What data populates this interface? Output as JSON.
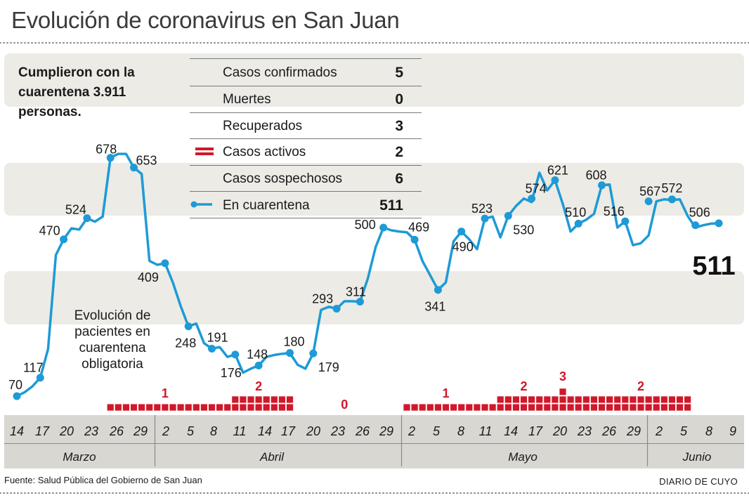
{
  "title": "Evolución de coronavirus en San Juan",
  "note": "Cumplieron con la cuarentena 3.911 personas.",
  "series_label": "Evolución de pacientes en cuarentena obligatoria",
  "source": "Fuente: Salud Pública del Gobierno de San Juan",
  "brand": "DIARIO DE CUYO",
  "colors": {
    "line": "#1e9ad6",
    "active": "#d0182a",
    "band": "#ecebe6",
    "axis_bg": "#d8d7d2"
  },
  "stats": [
    {
      "label": "Casos confirmados",
      "value": "5",
      "marker": "none"
    },
    {
      "label": "Muertes",
      "value": "0",
      "marker": "none"
    },
    {
      "label": "Recuperados",
      "value": "3",
      "marker": "none"
    },
    {
      "label": "Casos activos",
      "value": "2",
      "marker": "active-bars"
    },
    {
      "label": "Casos sospechosos",
      "value": "6",
      "marker": "none"
    },
    {
      "label": "En cuarentena",
      "value": "511",
      "marker": "line"
    }
  ],
  "chart_data": [
    {
      "type": "line",
      "title": "",
      "x_unit": "days since 14 March",
      "x_ticks": [
        "14",
        "17",
        "20",
        "23",
        "26",
        "29",
        "2",
        "5",
        "8",
        "11",
        "14",
        "17",
        "20",
        "23",
        "26",
        "29",
        "2",
        "5",
        "8",
        "11",
        "14",
        "17",
        "20",
        "23",
        "26",
        "29",
        "2",
        "5",
        "8",
        "9"
      ],
      "months": [
        "Marzo",
        "Abril",
        "Mayo",
        "Junio"
      ],
      "ylim": [
        0,
        740
      ],
      "last_value_label": "511",
      "labeled_points": [
        {
          "x": 0,
          "y": 70
        },
        {
          "x": 3,
          "y": 117
        },
        {
          "x": 6,
          "y": 470
        },
        {
          "x": 9,
          "y": 524
        },
        {
          "x": 12,
          "y": 678
        },
        {
          "x": 15,
          "y": 653
        },
        {
          "x": 19,
          "y": 409
        },
        {
          "x": 22,
          "y": 248
        },
        {
          "x": 25,
          "y": 191
        },
        {
          "x": 28,
          "y": 176
        },
        {
          "x": 31,
          "y": 148
        },
        {
          "x": 35,
          "y": 180
        },
        {
          "x": 38,
          "y": 179
        },
        {
          "x": 41,
          "y": 293
        },
        {
          "x": 44,
          "y": 311
        },
        {
          "x": 47,
          "y": 500
        },
        {
          "x": 51,
          "y": 469
        },
        {
          "x": 54,
          "y": 341
        },
        {
          "x": 57,
          "y": 490
        },
        {
          "x": 60,
          "y": 523
        },
        {
          "x": 63,
          "y": 530
        },
        {
          "x": 66,
          "y": 574
        },
        {
          "x": 69,
          "y": 621
        },
        {
          "x": 72,
          "y": 510
        },
        {
          "x": 75,
          "y": 608
        },
        {
          "x": 78,
          "y": 516
        },
        {
          "x": 81,
          "y": 567
        },
        {
          "x": 84,
          "y": 572
        },
        {
          "x": 87,
          "y": 506
        },
        {
          "x": 90,
          "y": 511
        }
      ],
      "series": [
        {
          "name": "En cuarentena",
          "points": [
            [
              0,
              70
            ],
            [
              1,
              80
            ],
            [
              2,
              95
            ],
            [
              3,
              117
            ],
            [
              4,
              190
            ],
            [
              5,
              430
            ],
            [
              6,
              470
            ],
            [
              7,
              498
            ],
            [
              8,
              495
            ],
            [
              9,
              524
            ],
            [
              10,
              515
            ],
            [
              11,
              528
            ],
            [
              12,
              678
            ],
            [
              13,
              688
            ],
            [
              14,
              688
            ],
            [
              15,
              653
            ],
            [
              16,
              637
            ],
            [
              17,
              415
            ],
            [
              18,
              405
            ],
            [
              19,
              409
            ],
            [
              20,
              360
            ],
            [
              21,
              300
            ],
            [
              22,
              248
            ],
            [
              23,
              255
            ],
            [
              24,
              205
            ],
            [
              25,
              191
            ],
            [
              26,
              195
            ],
            [
              27,
              170
            ],
            [
              28,
              176
            ],
            [
              29,
              130
            ],
            [
              30,
              140
            ],
            [
              31,
              148
            ],
            [
              32,
              170
            ],
            [
              33,
              175
            ],
            [
              34,
              178
            ],
            [
              35,
              180
            ],
            [
              36,
              150
            ],
            [
              37,
              140
            ],
            [
              38,
              179
            ],
            [
              39,
              290
            ],
            [
              40,
              298
            ],
            [
              41,
              293
            ],
            [
              42,
              312
            ],
            [
              43,
              312
            ],
            [
              44,
              311
            ],
            [
              45,
              370
            ],
            [
              46,
              450
            ],
            [
              47,
              500
            ],
            [
              48,
              493
            ],
            [
              49,
              490
            ],
            [
              50,
              488
            ],
            [
              51,
              469
            ],
            [
              52,
              415
            ],
            [
              53,
              378
            ],
            [
              54,
              341
            ],
            [
              55,
              360
            ],
            [
              56,
              465
            ],
            [
              57,
              490
            ],
            [
              58,
              470
            ],
            [
              59,
              445
            ],
            [
              60,
              523
            ],
            [
              61,
              528
            ],
            [
              62,
              475
            ],
            [
              63,
              530
            ],
            [
              64,
              555
            ],
            [
              65,
              574
            ],
            [
              66,
              565
            ],
            [
              67,
              640
            ],
            [
              68,
              595
            ],
            [
              69,
              621
            ],
            [
              70,
              560
            ],
            [
              71,
              490
            ],
            [
              72,
              510
            ],
            [
              73,
              520
            ],
            [
              74,
              535
            ],
            [
              75,
              608
            ],
            [
              76,
              610
            ],
            [
              77,
              500
            ],
            [
              78,
              516
            ],
            [
              79,
              455
            ],
            [
              80,
              460
            ],
            [
              81,
              480
            ],
            [
              82,
              567
            ],
            [
              83,
              572
            ],
            [
              84,
              570
            ],
            [
              85,
              572
            ],
            [
              86,
              530
            ],
            [
              87,
              500
            ],
            [
              88,
              506
            ],
            [
              89,
              510
            ],
            [
              90,
              511
            ]
          ]
        }
      ],
      "active_cases": [
        {
          "x_start": 12,
          "x_end": 27,
          "value": 1
        },
        {
          "x_start": 28,
          "x_end": 35,
          "value": 2
        },
        {
          "x_start": 36,
          "x_end": 50,
          "value": 0
        },
        {
          "x_start": 50,
          "x_end": 61,
          "value": 1
        },
        {
          "x_start": 62,
          "x_end": 69,
          "value": 2
        },
        {
          "x_start": 70,
          "x_end": 70,
          "value": 3
        },
        {
          "x_start": 71,
          "x_end": 86,
          "value": 2
        }
      ],
      "active_labels": [
        {
          "text": "1",
          "x": 19
        },
        {
          "text": "2",
          "x": 31
        },
        {
          "text": "0",
          "x": 42
        },
        {
          "text": "1",
          "x": 55
        },
        {
          "text": "2",
          "x": 65
        },
        {
          "text": "3",
          "x": 70
        },
        {
          "text": "2",
          "x": 80
        }
      ]
    }
  ]
}
